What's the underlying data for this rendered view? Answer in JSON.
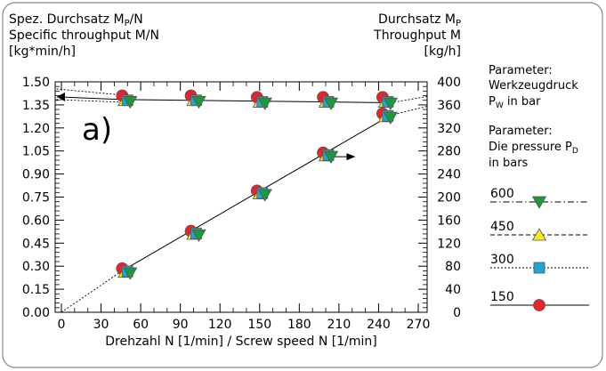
{
  "chart_data": {
    "type": "scatter",
    "panel_label": "a)",
    "left_axis": {
      "title_de": "Spez. Durchsatz M",
      "title_de_sub": "P",
      "title_de_suffix": "/N",
      "title_en": "Specific throughput M/N",
      "unit": "[kg*min/h]",
      "range": [
        0,
        1.5
      ],
      "ticks": [
        "0.00",
        "0.15",
        "0.30",
        "0.45",
        "0.60",
        "0.75",
        "0.90",
        "1.05",
        "1.20",
        "1.35",
        "1.50"
      ]
    },
    "right_axis": {
      "title_de": "Durchsatz M",
      "title_de_sub": "P",
      "title_en": "Throughput M",
      "unit": "[kg/h]",
      "range": [
        0,
        400
      ],
      "ticks": [
        "0",
        "40",
        "80",
        "120",
        "160",
        "200",
        "240",
        "280",
        "320",
        "360",
        "400"
      ]
    },
    "x_axis": {
      "label": "Drehzahl N [1/min] / Screw speed N [1/min]",
      "range": [
        0,
        270
      ],
      "ticks": [
        "0",
        "30",
        "60",
        "90",
        "120",
        "150",
        "180",
        "210",
        "240",
        "270"
      ]
    },
    "legend": {
      "title_de": "Parameter:",
      "title_de_line2": "Werkzeugdruck",
      "title_de_line3": "P",
      "title_de_line3_sub": "W",
      "title_de_line3_suffix": " in bar",
      "title_en": "Parameter:",
      "title_en_line2": "Die pressure P",
      "title_en_line2_sub": "D",
      "title_en_line3": "in bars",
      "items": [
        {
          "label": "600",
          "marker": "triangle-down",
          "color": "#1a9a3a",
          "line": "dashdot"
        },
        {
          "label": "450",
          "marker": "triangle-up",
          "color": "#f3ea1c",
          "line": "dashed"
        },
        {
          "label": "300",
          "marker": "square",
          "color": "#1ea6dc",
          "line": "dotted"
        },
        {
          "label": "150",
          "marker": "circle",
          "color": "#e8232a",
          "line": "solid"
        }
      ]
    },
    "specific_throughput_series": [
      {
        "name": "150",
        "x": [
          46,
          98,
          148,
          198,
          243
        ],
        "y": [
          1.41,
          1.41,
          1.4,
          1.4,
          1.4
        ]
      },
      {
        "name": "450",
        "x": [
          48,
          100,
          150,
          200,
          245
        ],
        "y": [
          1.38,
          1.38,
          1.37,
          1.37,
          1.37
        ]
      },
      {
        "name": "300",
        "x": [
          50,
          102,
          152,
          202,
          247
        ],
        "y": [
          1.38,
          1.38,
          1.37,
          1.37,
          1.37
        ]
      },
      {
        "name": "600",
        "x": [
          52,
          104,
          154,
          204,
          249
        ],
        "y": [
          1.37,
          1.37,
          1.36,
          1.36,
          1.36
        ]
      }
    ],
    "throughput_series": [
      {
        "name": "150",
        "x": [
          46,
          98,
          148,
          198,
          243
        ],
        "y": [
          76,
          141,
          211,
          277,
          345
        ]
      },
      {
        "name": "450",
        "x": [
          48,
          100,
          150,
          200,
          245
        ],
        "y": [
          70,
          136,
          206,
          272,
          340
        ]
      },
      {
        "name": "300",
        "x": [
          50,
          102,
          152,
          202,
          247
        ],
        "y": [
          71,
          137,
          207,
          273,
          341
        ]
      },
      {
        "name": "600",
        "x": [
          52,
          104,
          154,
          204,
          249
        ],
        "y": [
          68,
          134,
          204,
          270,
          338
        ]
      }
    ],
    "specific_fit_line": {
      "x": [
        46,
        249
      ],
      "y": [
        1.385,
        1.364
      ]
    },
    "throughput_fit_line": {
      "x": [
        46,
        249
      ],
      "y": [
        72,
        342
      ]
    },
    "colors": {
      "circle": "#e8232a",
      "triangle_up": "#f3ea1c",
      "square": "#1ea6dc",
      "triangle_down": "#1a9a3a"
    }
  }
}
